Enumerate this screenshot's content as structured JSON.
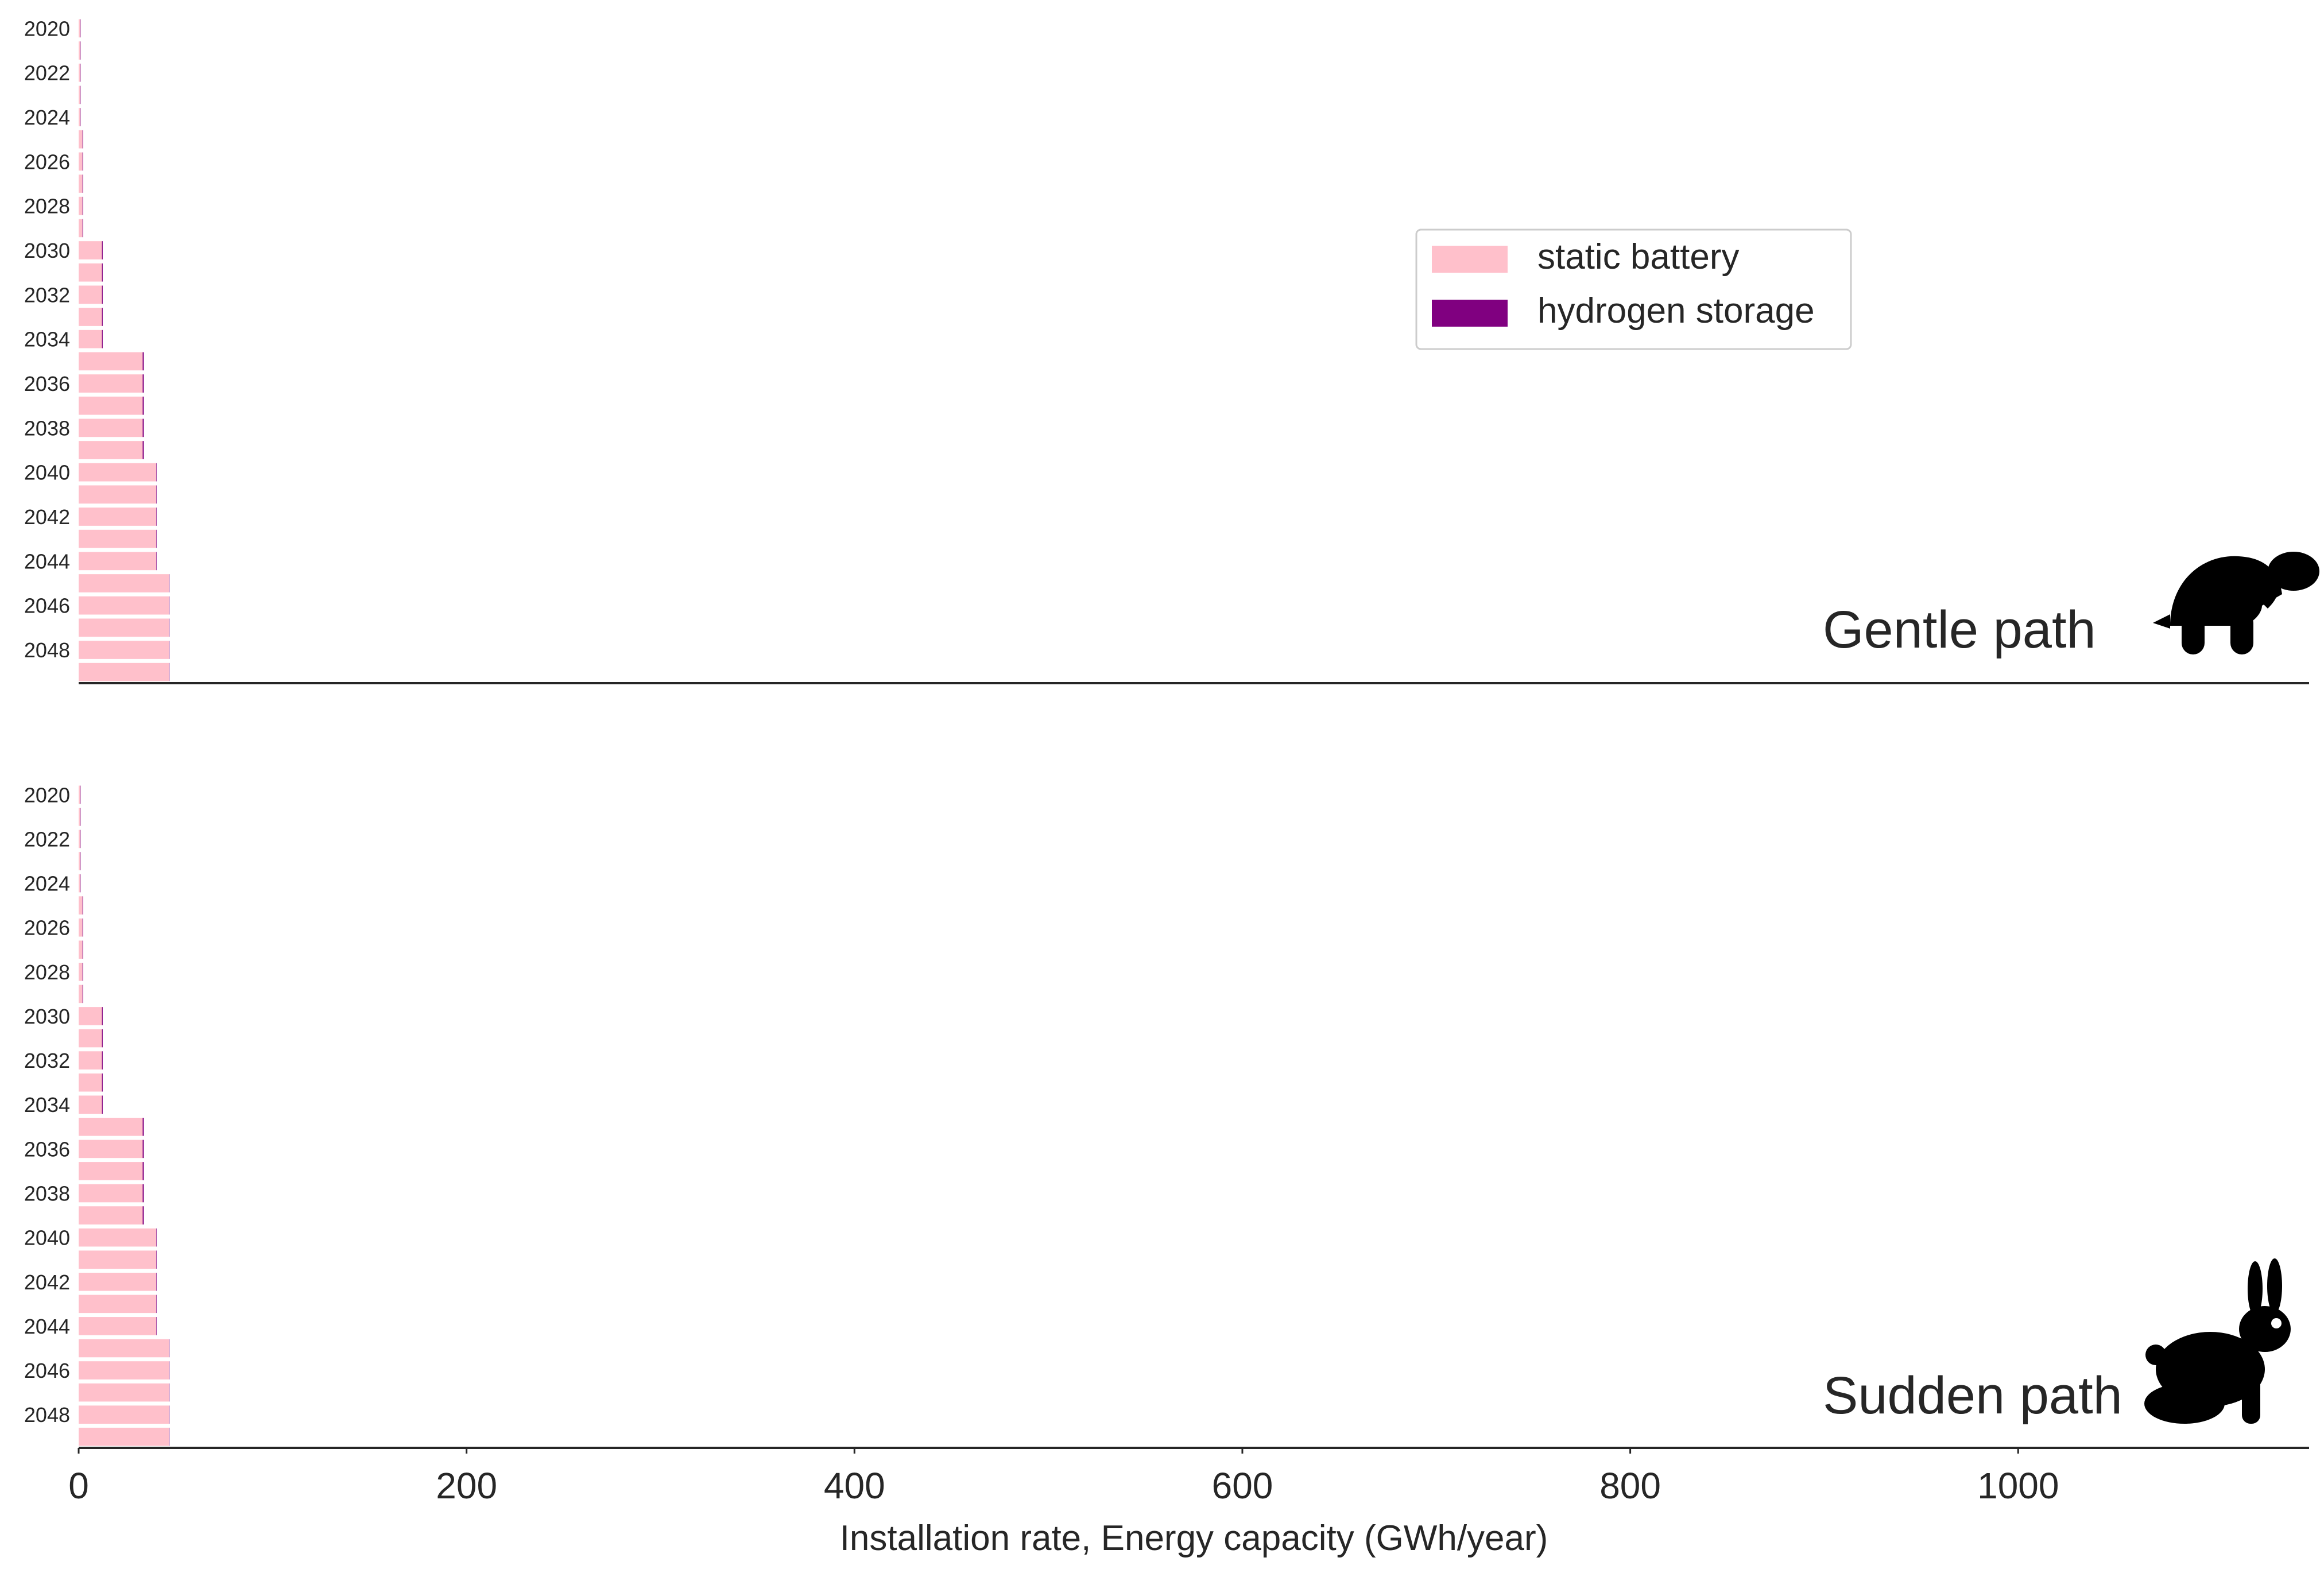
{
  "chart_data": [
    {
      "type": "bar",
      "orientation": "horizontal",
      "stacked": true,
      "panel_title": "Gentle path",
      "panel_icon": "turtle-icon",
      "categories": [
        "2020",
        "2021",
        "2022",
        "2023",
        "2024",
        "2025",
        "2026",
        "2027",
        "2028",
        "2029",
        "2030",
        "2031",
        "2032",
        "2033",
        "2034",
        "2035",
        "2036",
        "2037",
        "2038",
        "2039",
        "2040",
        "2041",
        "2042",
        "2043",
        "2044",
        "2045",
        "2046",
        "2047",
        "2048",
        "2049"
      ],
      "ytick_labels": [
        "2020",
        "2022",
        "2024",
        "2026",
        "2028",
        "2030",
        "2032",
        "2034",
        "2036",
        "2038",
        "2040",
        "2042",
        "2044",
        "2046",
        "2048"
      ],
      "series": [
        {
          "name": "static battery",
          "color": "#ffc0cb",
          "values": [
            0.8,
            0.8,
            0.8,
            0.8,
            0.8,
            2,
            2,
            2,
            2,
            2,
            12,
            12,
            12,
            12,
            12,
            33,
            33,
            33,
            33,
            33,
            40,
            40,
            40,
            40,
            40,
            46.5,
            46.5,
            46.5,
            46.5,
            46.5
          ]
        },
        {
          "name": "hydrogen storage",
          "color": "#800080",
          "values": [
            0.2,
            0.2,
            0.2,
            0.2,
            0.2,
            0.3,
            0.3,
            0.3,
            0.3,
            0.3,
            0.4,
            0.4,
            0.4,
            0.4,
            0.4,
            0.6,
            0.6,
            0.6,
            0.6,
            0.6,
            0.2,
            0.2,
            0.2,
            0.2,
            0.2,
            0.3,
            0.3,
            0.3,
            0.3,
            0.3
          ]
        }
      ],
      "xlim": [
        0,
        1150
      ],
      "grid": false
    },
    {
      "type": "bar",
      "orientation": "horizontal",
      "stacked": true,
      "panel_title": "Sudden path",
      "panel_icon": "rabbit-icon",
      "categories": [
        "2020",
        "2021",
        "2022",
        "2023",
        "2024",
        "2025",
        "2026",
        "2027",
        "2028",
        "2029",
        "2030",
        "2031",
        "2032",
        "2033",
        "2034",
        "2035",
        "2036",
        "2037",
        "2038",
        "2039",
        "2040",
        "2041",
        "2042",
        "2043",
        "2044",
        "2045",
        "2046",
        "2047",
        "2048",
        "2049"
      ],
      "ytick_labels": [
        "2020",
        "2022",
        "2024",
        "2026",
        "2028",
        "2030",
        "2032",
        "2034",
        "2036",
        "2038",
        "2040",
        "2042",
        "2044",
        "2046",
        "2048"
      ],
      "series": [
        {
          "name": "static battery",
          "color": "#ffc0cb",
          "values": [
            0.8,
            0.8,
            0.8,
            0.8,
            0.8,
            2,
            2,
            2,
            2,
            2,
            12,
            12,
            12,
            12,
            12,
            33,
            33,
            33,
            33,
            33,
            40,
            40,
            40,
            40,
            40,
            46.5,
            46.5,
            46.5,
            46.5,
            46.5
          ]
        },
        {
          "name": "hydrogen storage",
          "color": "#800080",
          "values": [
            0.2,
            0.2,
            0.2,
            0.2,
            0.2,
            0.3,
            0.3,
            0.3,
            0.3,
            0.3,
            0.4,
            0.4,
            0.4,
            0.4,
            0.4,
            0.6,
            0.6,
            0.6,
            0.6,
            0.6,
            0.2,
            0.2,
            0.2,
            0.2,
            0.2,
            0.3,
            0.3,
            0.3,
            0.3,
            0.3
          ]
        }
      ],
      "xlim": [
        0,
        1150
      ],
      "xticks": [
        0,
        200,
        400,
        600,
        800,
        1000
      ],
      "xtick_labels": [
        "0",
        "200",
        "400",
        "600",
        "800",
        "1000"
      ],
      "xlabel": "Installation rate, Energy capacity (GWh/year)",
      "grid": false
    }
  ],
  "legend": {
    "placement": "upper-right",
    "entries": [
      {
        "label": "static battery",
        "color": "#ffc0cb"
      },
      {
        "label": "hydrogen storage",
        "color": "#800080"
      }
    ]
  }
}
